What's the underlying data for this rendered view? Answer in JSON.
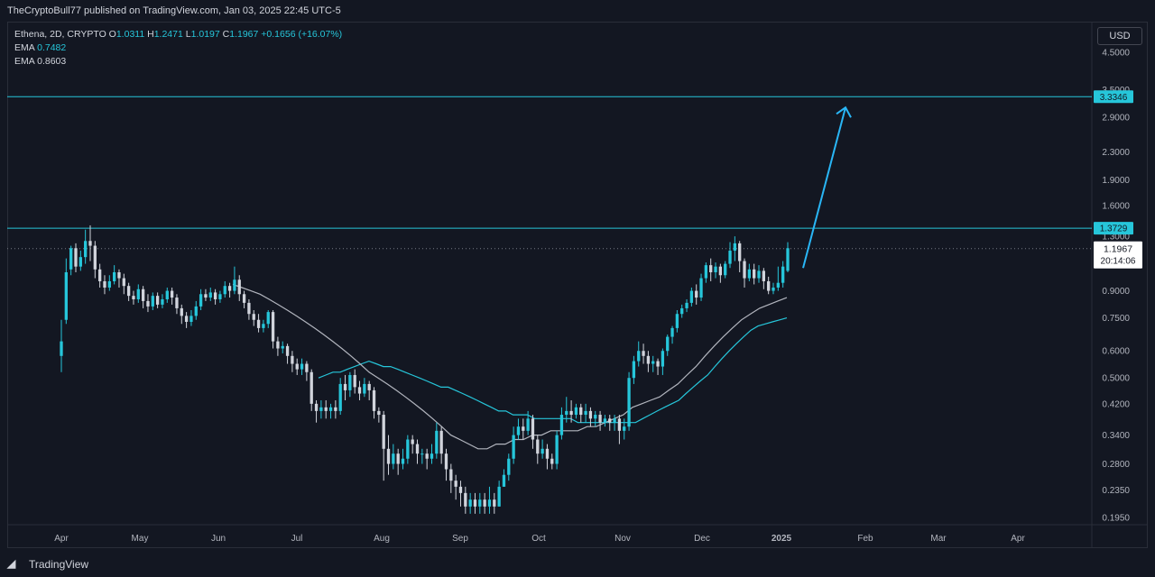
{
  "header": {
    "publisher": "TheCryptoBull77 published on TradingView.com, Jan 03, 2025 22:45 UTC-5"
  },
  "legend": {
    "symbol": "Ethena, 2D, CRYPTO",
    "o_label": "O",
    "o_value": "1.0311",
    "h_label": "H",
    "h_value": "1.2471",
    "l_label": "L",
    "l_value": "1.0197",
    "c_label": "C",
    "c_value": "1.1967",
    "change": "+0.1656 (+16.07%)",
    "ema1_label": "EMA",
    "ema1_value": "0.7482",
    "ema2_label": "EMA",
    "ema2_value": "0.8603"
  },
  "currency": "USD",
  "footer": {
    "brand": "TradingView"
  },
  "chart_data": {
    "type": "candlestick",
    "y_scale": "log",
    "ylim": [
      0.18,
      5.0
    ],
    "y_ticks": [
      "4.5000",
      "3.5000",
      "2.9000",
      "2.3000",
      "1.9000",
      "1.6000",
      "1.3000",
      "0.9000",
      "0.7500",
      "0.6000",
      "0.5000",
      "0.4200",
      "0.3400",
      "0.2800",
      "0.2350",
      "0.1950"
    ],
    "x_ticks": [
      "Apr",
      "May",
      "Jun",
      "Jul",
      "Aug",
      "Sep",
      "Oct",
      "Nov",
      "Dec",
      "2025",
      "Feb",
      "Mar",
      "Apr"
    ],
    "last_price": {
      "value": "1.1967",
      "countdown": "20:14:06"
    },
    "horizontal_levels": [
      {
        "value": 3.3346,
        "label": "3.3346",
        "color": "#26c6da"
      },
      {
        "value": 1.3729,
        "label": "1.3729",
        "color": "#26c6da"
      }
    ],
    "projection_arrow": {
      "from": 1.05,
      "to": 3.1,
      "color": "#29b6f6"
    },
    "colors": {
      "up": "#26c6da",
      "down": "#d1d4dc",
      "ema_fast": "#26c6da",
      "ema_slow": "#b2b5be",
      "background": "#131722"
    },
    "candles": [
      [
        0.58,
        0.64,
        0.52,
        0.74
      ],
      [
        0.74,
        1.02,
        0.72,
        1.12
      ],
      [
        1.04,
        1.2,
        1.0,
        1.22
      ],
      [
        1.2,
        1.06,
        1.02,
        1.24
      ],
      [
        1.06,
        1.13,
        1.03,
        1.18
      ],
      [
        1.13,
        1.26,
        1.08,
        1.36
      ],
      [
        1.26,
        1.22,
        1.1,
        1.4
      ],
      [
        1.22,
        1.04,
        0.98,
        1.26
      ],
      [
        1.04,
        0.96,
        0.92,
        1.08
      ],
      [
        0.96,
        0.92,
        0.88,
        1.0
      ],
      [
        0.92,
        0.96,
        0.9,
        1.0
      ],
      [
        0.96,
        1.02,
        0.94,
        1.07
      ],
      [
        1.02,
        0.98,
        0.92,
        1.04
      ],
      [
        0.98,
        0.93,
        0.88,
        1.01
      ],
      [
        0.93,
        0.87,
        0.84,
        0.95
      ],
      [
        0.87,
        0.85,
        0.82,
        0.9
      ],
      [
        0.85,
        0.91,
        0.83,
        0.94
      ],
      [
        0.91,
        0.84,
        0.8,
        0.93
      ],
      [
        0.84,
        0.81,
        0.78,
        0.88
      ],
      [
        0.81,
        0.87,
        0.79,
        0.89
      ],
      [
        0.87,
        0.82,
        0.8,
        0.89
      ],
      [
        0.82,
        0.85,
        0.8,
        0.88
      ],
      [
        0.85,
        0.9,
        0.83,
        0.92
      ],
      [
        0.9,
        0.86,
        0.82,
        0.92
      ],
      [
        0.86,
        0.8,
        0.77,
        0.88
      ],
      [
        0.8,
        0.76,
        0.72,
        0.82
      ],
      [
        0.76,
        0.73,
        0.7,
        0.78
      ],
      [
        0.73,
        0.76,
        0.71,
        0.79
      ],
      [
        0.76,
        0.81,
        0.74,
        0.84
      ],
      [
        0.81,
        0.88,
        0.79,
        0.91
      ],
      [
        0.88,
        0.86,
        0.84,
        0.91
      ],
      [
        0.86,
        0.89,
        0.84,
        0.92
      ],
      [
        0.89,
        0.85,
        0.82,
        0.91
      ],
      [
        0.85,
        0.88,
        0.83,
        0.9
      ],
      [
        0.88,
        0.93,
        0.86,
        0.96
      ],
      [
        0.93,
        0.9,
        0.86,
        0.95
      ],
      [
        0.9,
        0.97,
        0.88,
        1.06
      ],
      [
        0.97,
        0.88,
        0.84,
        1.0
      ],
      [
        0.88,
        0.83,
        0.8,
        0.9
      ],
      [
        0.83,
        0.77,
        0.74,
        0.85
      ],
      [
        0.77,
        0.74,
        0.71,
        0.79
      ],
      [
        0.74,
        0.7,
        0.68,
        0.77
      ],
      [
        0.7,
        0.72,
        0.68,
        0.74
      ],
      [
        0.72,
        0.78,
        0.7,
        0.79
      ],
      [
        0.78,
        0.64,
        0.61,
        0.79
      ],
      [
        0.64,
        0.61,
        0.58,
        0.66
      ],
      [
        0.61,
        0.62,
        0.59,
        0.64
      ],
      [
        0.62,
        0.58,
        0.55,
        0.63
      ],
      [
        0.58,
        0.55,
        0.52,
        0.6
      ],
      [
        0.55,
        0.53,
        0.51,
        0.57
      ],
      [
        0.53,
        0.55,
        0.51,
        0.57
      ],
      [
        0.55,
        0.52,
        0.49,
        0.56
      ],
      [
        0.52,
        0.42,
        0.4,
        0.53
      ],
      [
        0.42,
        0.4,
        0.37,
        0.43
      ],
      [
        0.4,
        0.41,
        0.38,
        0.43
      ],
      [
        0.41,
        0.4,
        0.38,
        0.43
      ],
      [
        0.4,
        0.41,
        0.38,
        0.42
      ],
      [
        0.41,
        0.4,
        0.38,
        0.43
      ],
      [
        0.4,
        0.48,
        0.39,
        0.5
      ],
      [
        0.48,
        0.46,
        0.43,
        0.51
      ],
      [
        0.46,
        0.51,
        0.44,
        0.52
      ],
      [
        0.51,
        0.47,
        0.45,
        0.53
      ],
      [
        0.47,
        0.45,
        0.43,
        0.49
      ],
      [
        0.45,
        0.48,
        0.44,
        0.5
      ],
      [
        0.48,
        0.46,
        0.43,
        0.49
      ],
      [
        0.46,
        0.4,
        0.38,
        0.47
      ],
      [
        0.4,
        0.39,
        0.37,
        0.41
      ],
      [
        0.39,
        0.31,
        0.25,
        0.4
      ],
      [
        0.31,
        0.28,
        0.26,
        0.34
      ],
      [
        0.28,
        0.3,
        0.27,
        0.32
      ],
      [
        0.3,
        0.28,
        0.26,
        0.31
      ],
      [
        0.28,
        0.29,
        0.27,
        0.31
      ],
      [
        0.29,
        0.33,
        0.28,
        0.34
      ],
      [
        0.33,
        0.32,
        0.3,
        0.34
      ],
      [
        0.32,
        0.3,
        0.28,
        0.33
      ],
      [
        0.3,
        0.3,
        0.28,
        0.31
      ],
      [
        0.3,
        0.29,
        0.27,
        0.31
      ],
      [
        0.29,
        0.3,
        0.28,
        0.32
      ],
      [
        0.3,
        0.35,
        0.29,
        0.37
      ],
      [
        0.35,
        0.3,
        0.28,
        0.36
      ],
      [
        0.3,
        0.27,
        0.25,
        0.31
      ],
      [
        0.27,
        0.25,
        0.23,
        0.28
      ],
      [
        0.25,
        0.24,
        0.22,
        0.26
      ],
      [
        0.24,
        0.23,
        0.21,
        0.25
      ],
      [
        0.23,
        0.21,
        0.2,
        0.24
      ],
      [
        0.21,
        0.22,
        0.2,
        0.23
      ],
      [
        0.22,
        0.21,
        0.2,
        0.23
      ],
      [
        0.21,
        0.22,
        0.2,
        0.23
      ],
      [
        0.22,
        0.21,
        0.2,
        0.23
      ],
      [
        0.21,
        0.22,
        0.2,
        0.24
      ],
      [
        0.22,
        0.21,
        0.2,
        0.23
      ],
      [
        0.21,
        0.24,
        0.21,
        0.25
      ],
      [
        0.24,
        0.26,
        0.24,
        0.27
      ],
      [
        0.26,
        0.29,
        0.25,
        0.3
      ],
      [
        0.29,
        0.34,
        0.28,
        0.36
      ],
      [
        0.34,
        0.36,
        0.33,
        0.38
      ],
      [
        0.36,
        0.35,
        0.33,
        0.38
      ],
      [
        0.35,
        0.38,
        0.34,
        0.4
      ],
      [
        0.38,
        0.33,
        0.31,
        0.39
      ],
      [
        0.33,
        0.3,
        0.28,
        0.34
      ],
      [
        0.3,
        0.31,
        0.29,
        0.33
      ],
      [
        0.31,
        0.29,
        0.27,
        0.32
      ],
      [
        0.29,
        0.28,
        0.27,
        0.3
      ],
      [
        0.28,
        0.34,
        0.27,
        0.35
      ],
      [
        0.34,
        0.39,
        0.33,
        0.41
      ],
      [
        0.39,
        0.4,
        0.37,
        0.44
      ],
      [
        0.4,
        0.39,
        0.37,
        0.43
      ],
      [
        0.39,
        0.41,
        0.38,
        0.42
      ],
      [
        0.41,
        0.39,
        0.37,
        0.42
      ],
      [
        0.39,
        0.4,
        0.37,
        0.42
      ],
      [
        0.4,
        0.38,
        0.36,
        0.41
      ],
      [
        0.38,
        0.39,
        0.36,
        0.4
      ],
      [
        0.39,
        0.37,
        0.35,
        0.4
      ],
      [
        0.37,
        0.38,
        0.36,
        0.39
      ],
      [
        0.38,
        0.37,
        0.35,
        0.39
      ],
      [
        0.37,
        0.38,
        0.35,
        0.39
      ],
      [
        0.38,
        0.35,
        0.32,
        0.39
      ],
      [
        0.35,
        0.36,
        0.33,
        0.38
      ],
      [
        0.36,
        0.5,
        0.35,
        0.52
      ],
      [
        0.5,
        0.56,
        0.48,
        0.58
      ],
      [
        0.56,
        0.6,
        0.54,
        0.64
      ],
      [
        0.6,
        0.58,
        0.55,
        0.63
      ],
      [
        0.58,
        0.55,
        0.52,
        0.6
      ],
      [
        0.55,
        0.56,
        0.52,
        0.58
      ],
      [
        0.56,
        0.54,
        0.51,
        0.57
      ],
      [
        0.54,
        0.6,
        0.51,
        0.61
      ],
      [
        0.6,
        0.66,
        0.58,
        0.67
      ],
      [
        0.66,
        0.7,
        0.63,
        0.71
      ],
      [
        0.7,
        0.77,
        0.68,
        0.79
      ],
      [
        0.77,
        0.8,
        0.75,
        0.82
      ],
      [
        0.8,
        0.83,
        0.78,
        0.85
      ],
      [
        0.83,
        0.9,
        0.81,
        0.92
      ],
      [
        0.9,
        0.86,
        0.82,
        0.94
      ],
      [
        0.86,
        0.98,
        0.84,
        1.01
      ],
      [
        0.98,
        1.07,
        0.95,
        1.09
      ],
      [
        1.07,
        1.02,
        0.96,
        1.12
      ],
      [
        1.02,
        1.06,
        0.98,
        1.09
      ],
      [
        1.06,
        1.0,
        0.95,
        1.08
      ],
      [
        1.0,
        1.08,
        0.98,
        1.1
      ],
      [
        1.08,
        1.18,
        1.05,
        1.25
      ],
      [
        1.18,
        1.24,
        1.1,
        1.3
      ],
      [
        1.24,
        1.1,
        1.02,
        1.26
      ],
      [
        1.1,
        0.98,
        0.92,
        1.12
      ],
      [
        0.98,
        1.04,
        0.96,
        1.08
      ],
      [
        1.04,
        0.98,
        0.94,
        1.08
      ],
      [
        0.98,
        1.03,
        0.95,
        1.07
      ],
      [
        1.03,
        0.96,
        0.91,
        1.05
      ],
      [
        0.96,
        0.9,
        0.88,
        0.99
      ],
      [
        0.9,
        0.92,
        0.88,
        0.95
      ],
      [
        0.92,
        0.95,
        0.9,
        1.06
      ],
      [
        0.95,
        1.06,
        0.92,
        1.1
      ],
      [
        1.03,
        1.2,
        1.02,
        1.25
      ]
    ],
    "ema_fast": [
      0.5,
      0.51,
      0.52,
      0.52,
      0.53,
      0.54,
      0.55,
      0.56,
      0.55,
      0.54,
      0.54,
      0.53,
      0.52,
      0.51,
      0.5,
      0.49,
      0.48,
      0.47,
      0.47,
      0.46,
      0.45,
      0.44,
      0.43,
      0.42,
      0.41,
      0.4,
      0.4,
      0.39,
      0.39,
      0.39,
      0.38,
      0.38,
      0.38,
      0.38,
      0.38,
      0.38,
      0.37,
      0.37,
      0.37,
      0.37,
      0.37,
      0.37,
      0.37,
      0.37,
      0.37,
      0.38,
      0.39,
      0.4,
      0.41,
      0.42,
      0.43,
      0.45,
      0.47,
      0.49,
      0.51,
      0.54,
      0.57,
      0.6,
      0.63,
      0.66,
      0.69,
      0.71,
      0.72,
      0.73,
      0.74,
      0.75
    ],
    "ema_slow": [
      0.94,
      0.92,
      0.9,
      0.88,
      0.85,
      0.82,
      0.79,
      0.76,
      0.73,
      0.7,
      0.67,
      0.64,
      0.61,
      0.58,
      0.55,
      0.52,
      0.5,
      0.48,
      0.46,
      0.44,
      0.42,
      0.4,
      0.38,
      0.36,
      0.34,
      0.33,
      0.32,
      0.31,
      0.31,
      0.32,
      0.32,
      0.33,
      0.33,
      0.34,
      0.34,
      0.35,
      0.35,
      0.35,
      0.35,
      0.36,
      0.36,
      0.37,
      0.38,
      0.39,
      0.41,
      0.42,
      0.43,
      0.44,
      0.46,
      0.48,
      0.51,
      0.54,
      0.58,
      0.62,
      0.66,
      0.7,
      0.74,
      0.77,
      0.8,
      0.82,
      0.84,
      0.86
    ]
  }
}
